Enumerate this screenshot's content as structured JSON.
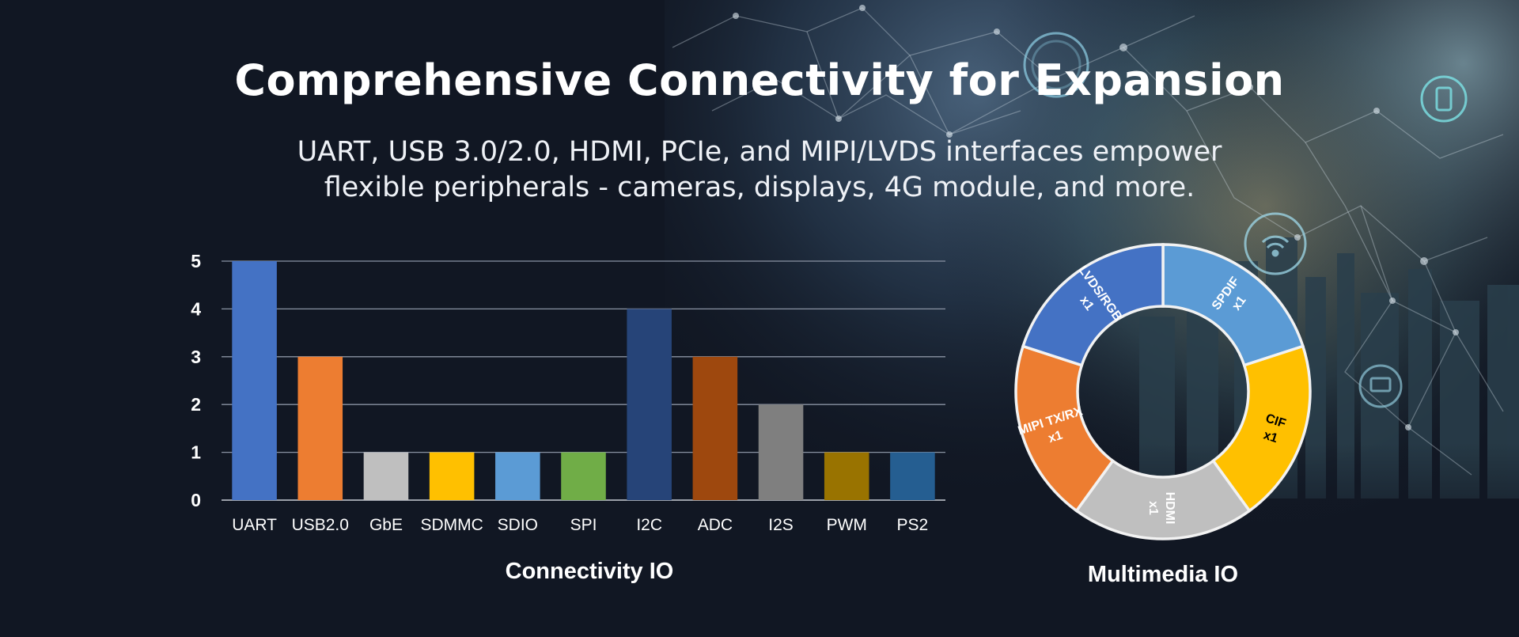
{
  "page": {
    "title": "Comprehensive Connectivity for Expansion",
    "subtitle_lines": [
      "UART, USB 3.0/2.0, HDMI, PCIe, and MIPI/LVDS interfaces empower",
      "flexible peripherals - cameras, displays, 4G module, and more."
    ]
  },
  "colors": {
    "background": "#111723",
    "gridline": "#8a93a3",
    "axis_text": "#ffffff",
    "donut_border": "#f2f2f2"
  },
  "chart_data": [
    {
      "type": "bar",
      "title": "Connectivity IO",
      "categories": [
        "UART",
        "USB2.0",
        "GbE",
        "SDMMC",
        "SDIO",
        "SPI",
        "I2C",
        "ADC",
        "I2S",
        "PWM",
        "PS2"
      ],
      "values": [
        5,
        3,
        1,
        1,
        1,
        1,
        4,
        3,
        2,
        1,
        1
      ],
      "colors": [
        "#4472c4",
        "#ed7d31",
        "#bfbfbf",
        "#ffc000",
        "#5b9bd5",
        "#70ad47",
        "#264478",
        "#9e480e",
        "#7f7f7f",
        "#997300",
        "#255e91"
      ],
      "ylim": [
        0,
        5
      ],
      "yticks": [
        0,
        1,
        2,
        3,
        4,
        5
      ],
      "grid": true,
      "xlabel": "",
      "ylabel": ""
    },
    {
      "type": "pie",
      "variant": "donut",
      "title": "Multimedia IO",
      "slices": [
        {
          "label": "SPDIF",
          "count_label": "x1",
          "value": 1,
          "color": "#5b9bd5",
          "text_color": "#ffffff"
        },
        {
          "label": "CIF",
          "count_label": "x1",
          "value": 1,
          "color": "#ffc000",
          "text_color": "#000000"
        },
        {
          "label": "HDMI",
          "count_label": "x1",
          "value": 1,
          "color": "#bfbfbf",
          "text_color": "#ffffff"
        },
        {
          "label": "MIPI TX/RX",
          "count_label": "x1",
          "value": 1,
          "color": "#ed7d31",
          "text_color": "#ffffff"
        },
        {
          "label": "LVDS/RGB",
          "count_label": "x1",
          "value": 1,
          "color": "#4472c4",
          "text_color": "#ffffff"
        }
      ]
    }
  ]
}
